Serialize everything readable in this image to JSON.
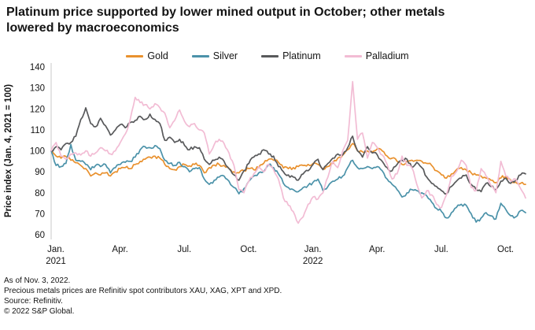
{
  "title": "Platinum price supported by lower mined output in October; other metals lowered by macroeconomics",
  "footer": {
    "as_of": "As of Nov. 3, 2022.",
    "note": "Precious metals prices are Refinitiv spot contributors XAU, XAG, XPT and XPD.",
    "source": "Source: Refinitiv.",
    "copyright": "© 2022 S&P Global."
  },
  "chart_data": {
    "type": "line",
    "title": "Platinum price supported by lower mined output in October; other metals lowered by macroeconomics",
    "xlabel": "",
    "ylabel": "Price index (Jan. 4, 2021 = 100)",
    "ylim": [
      60,
      140
    ],
    "yticks": [
      60,
      70,
      80,
      90,
      100,
      110,
      120,
      130,
      140
    ],
    "grid": false,
    "legend_position": "top-center",
    "x_unit": "weeks since Jan. 4, 2021",
    "x_max": 96,
    "xticks": [
      {
        "label": "Jan.",
        "sub": "2021",
        "week": 0
      },
      {
        "label": "Apr.",
        "sub": "",
        "week": 13
      },
      {
        "label": "Jul.",
        "sub": "",
        "week": 26
      },
      {
        "label": "Oct.",
        "sub": "",
        "week": 39
      },
      {
        "label": "Jan.",
        "sub": "2022",
        "week": 52
      },
      {
        "label": "Apr.",
        "sub": "",
        "week": 65
      },
      {
        "label": "Jul.",
        "sub": "",
        "week": 78
      },
      {
        "label": "Oct.",
        "sub": "",
        "week": 91
      }
    ],
    "series": [
      {
        "name": "Gold",
        "color": "#E9912E",
        "values": [
          100,
          97.5,
          96.5,
          97.3,
          95.5,
          94.3,
          93,
          91.5,
          88,
          89.5,
          88.5,
          89.5,
          88,
          90,
          91.5,
          92,
          91.5,
          93.5,
          95,
          96,
          97,
          97.5,
          96.5,
          93.5,
          91.5,
          91,
          92.5,
          93.5,
          92.8,
          93.5,
          93,
          89.5,
          92,
          93.2,
          93.5,
          93,
          91.5,
          90,
          89.5,
          90.5,
          91.5,
          91,
          92,
          94,
          96,
          95.5,
          94.5,
          91.8,
          91.5,
          92,
          92.5,
          93,
          93.5,
          94,
          93.5,
          91.5,
          92.5,
          94,
          96.5,
          98,
          100.5,
          103.5,
          100,
          99.5,
          100,
          99.5,
          101,
          100,
          97.5,
          96.5,
          95,
          93.5,
          95,
          95.5,
          95.5,
          95,
          94,
          93,
          90.5,
          88.5,
          87,
          89,
          91,
          92,
          91,
          89.5,
          88.5,
          88,
          87,
          86,
          84.8,
          87,
          88,
          86,
          85,
          84.5,
          84
        ]
      },
      {
        "name": "Silver",
        "color": "#4B92A9",
        "values": [
          100,
          93,
          92.5,
          94,
          103,
          95.5,
          95,
          93.5,
          91,
          93,
          92.5,
          93.5,
          89.5,
          92,
          93.5,
          94.5,
          95,
          97,
          100.5,
          102,
          101.5,
          102.5,
          101,
          95.5,
          94,
          93,
          94.5,
          92.5,
          90,
          91.5,
          92,
          86.5,
          84,
          86,
          87.5,
          88,
          85.5,
          82.5,
          79.5,
          82,
          85.5,
          88,
          89.5,
          90,
          93.5,
          92,
          89,
          84.5,
          82.5,
          81.5,
          80.5,
          82.5,
          83.5,
          85,
          86.5,
          81,
          83,
          85.5,
          86.5,
          88,
          92,
          95.5,
          92,
          91.5,
          92.5,
          91.5,
          92.5,
          90.5,
          86.5,
          84,
          81.5,
          78,
          80,
          81.5,
          81,
          80,
          78.5,
          75.5,
          72.5,
          71,
          68,
          70.5,
          73,
          74.5,
          74,
          70,
          66,
          68,
          70.5,
          69,
          67.5,
          75,
          72,
          69,
          68.5,
          71.5,
          70.5
        ]
      },
      {
        "name": "Platinum",
        "color": "#58595B",
        "values": [
          100,
          102,
          100.5,
          103.5,
          104,
          107,
          115,
          120.5,
          113,
          111.5,
          115.5,
          112,
          107.5,
          110,
          112.5,
          111,
          113.5,
          114.5,
          116.5,
          115,
          117.5,
          115,
          113,
          105,
          106.5,
          104,
          105.5,
          102.5,
          100.5,
          102,
          101.5,
          96,
          93.5,
          95.5,
          97,
          95,
          91.5,
          88.5,
          86,
          90.5,
          94,
          97,
          98.5,
          100.5,
          98.5,
          97.5,
          92.5,
          90,
          88.5,
          87.5,
          86,
          89,
          90.5,
          93.5,
          96,
          91,
          94,
          96.5,
          98.5,
          98,
          101.5,
          107,
          100,
          97,
          102,
          99,
          98,
          95,
          92,
          90.5,
          93.5,
          95.5,
          96,
          92,
          94.5,
          92,
          87.5,
          84.5,
          83,
          81,
          79.5,
          83,
          85.5,
          87,
          88.5,
          84,
          81.5,
          80.5,
          84.5,
          83,
          81.5,
          85.5,
          87,
          84.5,
          86,
          88.5,
          89
        ]
      },
      {
        "name": "Palladium",
        "color": "#F2BCD4",
        "values": [
          100,
          104,
          97.5,
          96,
          98.5,
          99,
          98,
          100,
          97.5,
          99,
          101.5,
          100,
          98.5,
          100,
          104,
          108,
          115,
          125.5,
          123,
          122,
          120,
          122.5,
          120.5,
          118,
          111,
          114.5,
          119.5,
          114,
          111.5,
          113,
          110,
          108.5,
          98.5,
          103,
          105.5,
          103.5,
          99,
          93,
          81.5,
          80,
          85.5,
          89,
          92.5,
          90,
          93.5,
          91,
          86.5,
          77.5,
          74,
          71,
          65.5,
          68.5,
          74.5,
          78,
          77,
          80,
          87.5,
          95,
          92,
          100,
          105,
          133,
          105.5,
          108.5,
          96.5,
          104,
          101.5,
          98,
          93.5,
          86.5,
          89,
          97.5,
          93,
          92,
          84,
          77.5,
          81,
          79,
          74.5,
          73,
          79,
          88,
          90,
          95.5,
          93,
          82.5,
          81,
          91.5,
          88,
          83.5,
          80,
          95,
          88,
          85.5,
          86.5,
          82,
          77.5
        ]
      }
    ]
  }
}
